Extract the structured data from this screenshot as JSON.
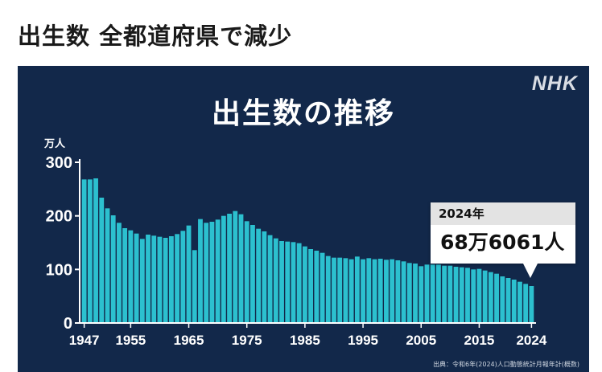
{
  "headline": "出生数 全都道府県で減少",
  "logo": "NHK",
  "source": "出典：令和6年(2024)人口動態統計月報年計(概数)",
  "callout": {
    "year": "2024年",
    "value": "68万6061人"
  },
  "colors": {
    "panel": "#12284a",
    "bar": "#2cc0cf",
    "bar_edge": "#1797a8"
  },
  "chart_data": {
    "type": "bar",
    "title": "出生数の推移",
    "ylabel": "万人",
    "xlabel": "",
    "ylim": [
      0,
      300
    ],
    "yticks": [
      0,
      100,
      200,
      300
    ],
    "xticks": [
      1947,
      1955,
      1965,
      1975,
      1985,
      1995,
      2005,
      2015,
      2024
    ],
    "grid": false,
    "x": [
      1947,
      1948,
      1949,
      1950,
      1951,
      1952,
      1953,
      1954,
      1955,
      1956,
      1957,
      1958,
      1959,
      1960,
      1961,
      1962,
      1963,
      1964,
      1965,
      1966,
      1967,
      1968,
      1969,
      1970,
      1971,
      1972,
      1973,
      1974,
      1975,
      1976,
      1977,
      1978,
      1979,
      1980,
      1981,
      1982,
      1983,
      1984,
      1985,
      1986,
      1987,
      1988,
      1989,
      1990,
      1991,
      1992,
      1993,
      1994,
      1995,
      1996,
      1997,
      1998,
      1999,
      2000,
      2001,
      2002,
      2003,
      2004,
      2005,
      2006,
      2007,
      2008,
      2009,
      2010,
      2011,
      2012,
      2013,
      2014,
      2015,
      2016,
      2017,
      2018,
      2019,
      2020,
      2021,
      2022,
      2023,
      2024
    ],
    "values": [
      268,
      268,
      270,
      234,
      214,
      201,
      187,
      177,
      173,
      167,
      157,
      165,
      163,
      161,
      159,
      162,
      166,
      172,
      182,
      136,
      194,
      187,
      189,
      193,
      200,
      204,
      209,
      203,
      190,
      183,
      176,
      171,
      164,
      158,
      153,
      152,
      151,
      149,
      143,
      138,
      135,
      131,
      125,
      122,
      122,
      121,
      119,
      124,
      119,
      121,
      119,
      120,
      118,
      119,
      117,
      115,
      112,
      111,
      106,
      109,
      109,
      109,
      107,
      107,
      105,
      104,
      103,
      100,
      101,
      98,
      95,
      92,
      87,
      84,
      81,
      77,
      73,
      69
    ]
  }
}
